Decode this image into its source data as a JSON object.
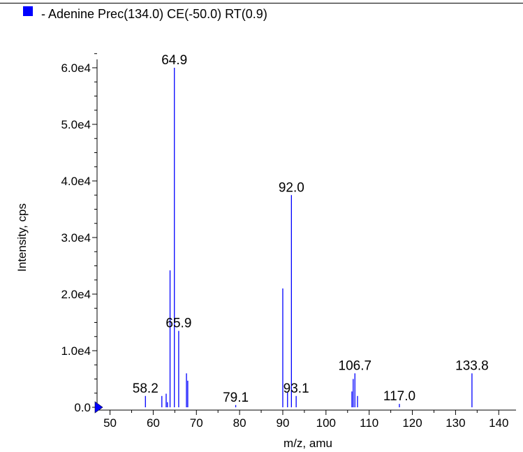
{
  "chart_data": {
    "type": "bar",
    "title": "- Adenine  Prec(134.0) CE(-50.0) RT(0.9)",
    "xlabel": "m/z, amu",
    "ylabel": "Intensity, cps",
    "xlim": [
      47,
      144
    ],
    "ylim": [
      0,
      63000
    ],
    "x_ticks": [
      50,
      60,
      70,
      80,
      90,
      100,
      110,
      120,
      130,
      140
    ],
    "y_ticks": [
      {
        "value": 0,
        "label": "0.0"
      },
      {
        "value": 10000,
        "label": "1.0e4"
      },
      {
        "value": 20000,
        "label": "2.0e4"
      },
      {
        "value": 30000,
        "label": "3.0e4"
      },
      {
        "value": 40000,
        "label": "4.0e4"
      },
      {
        "value": 50000,
        "label": "5.0e4"
      },
      {
        "value": 60000,
        "label": "6.0e4"
      }
    ],
    "y_minor_step": 2500,
    "x_minor_step": 5,
    "grid": false,
    "legend": {
      "position": "top-left",
      "color": "#0000ff"
    },
    "series_color": "#0000ff",
    "marker_color": "#0000ff",
    "peaks": [
      {
        "mz": 58.2,
        "intensity": 2000,
        "label": "58.2"
      },
      {
        "mz": 62.0,
        "intensity": 2000
      },
      {
        "mz": 63.0,
        "intensity": 2400
      },
      {
        "mz": 63.3,
        "intensity": 900
      },
      {
        "mz": 63.9,
        "intensity": 24200
      },
      {
        "mz": 64.9,
        "intensity": 60000,
        "label": "64.9"
      },
      {
        "mz": 65.9,
        "intensity": 13500,
        "label": "65.9"
      },
      {
        "mz": 67.7,
        "intensity": 6000
      },
      {
        "mz": 68.0,
        "intensity": 4700
      },
      {
        "mz": 79.1,
        "intensity": 400,
        "label": "79.1"
      },
      {
        "mz": 90.0,
        "intensity": 21000
      },
      {
        "mz": 91.1,
        "intensity": 2600
      },
      {
        "mz": 92.0,
        "intensity": 37500,
        "label": "92.0"
      },
      {
        "mz": 93.1,
        "intensity": 2000,
        "label": "93.1"
      },
      {
        "mz": 106.0,
        "intensity": 2800
      },
      {
        "mz": 106.3,
        "intensity": 5000
      },
      {
        "mz": 106.7,
        "intensity": 6000,
        "label": "106.7"
      },
      {
        "mz": 107.3,
        "intensity": 2000
      },
      {
        "mz": 117.0,
        "intensity": 600,
        "label": "117.0"
      },
      {
        "mz": 133.8,
        "intensity": 6000,
        "label": "133.8"
      }
    ]
  }
}
